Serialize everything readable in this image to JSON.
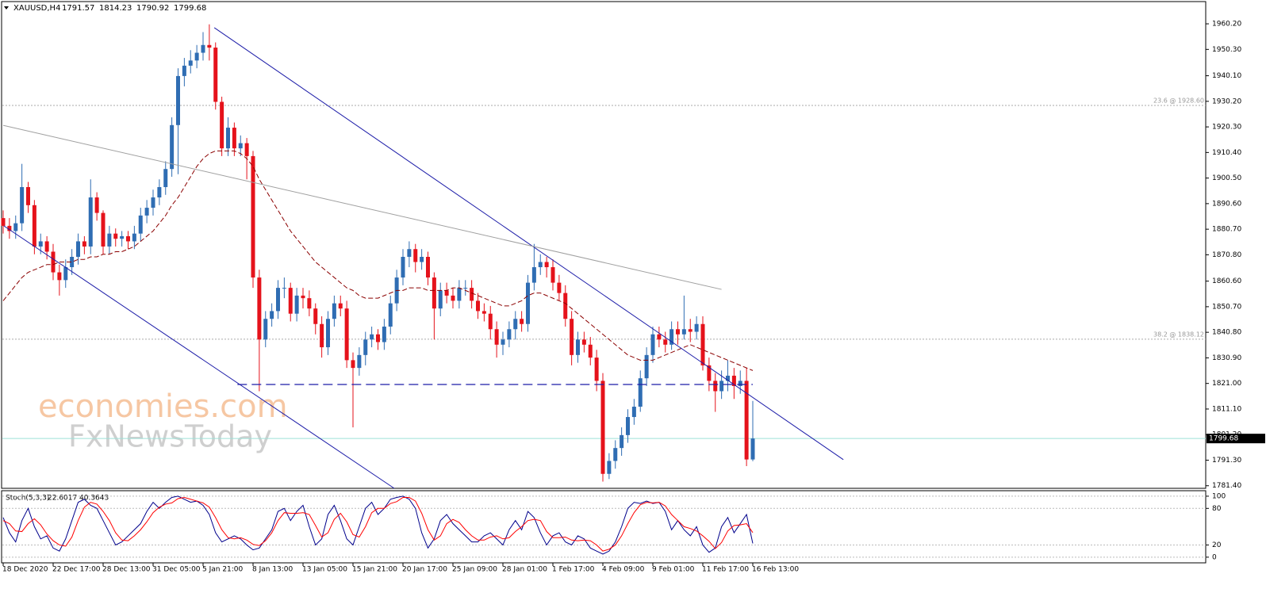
{
  "chart_data": [
    {
      "type": "candlestick",
      "symbol": "XAUUSD,H4",
      "categories": [
        "18 Dec 2020",
        null,
        null,
        null,
        null,
        null,
        null,
        null,
        "22 Dec 17:00",
        null,
        null,
        null,
        null,
        null,
        null,
        null,
        "28 Dec 13:00",
        null,
        null,
        null,
        null,
        null,
        null,
        null,
        "31 Dec 05:00",
        null,
        null,
        null,
        null,
        null,
        null,
        null,
        "5 Jan 21:00",
        null,
        null,
        null,
        null,
        null,
        null,
        null,
        "8 Jan 13:00",
        null,
        null,
        null,
        null,
        null,
        null,
        null,
        "13 Jan 05:00",
        null,
        null,
        null,
        null,
        null,
        null,
        null,
        "15 Jan 21:00",
        null,
        null,
        null,
        null,
        null,
        null,
        null,
        "20 Jan 17:00",
        null,
        null,
        null,
        null,
        null,
        null,
        null,
        "25 Jan 09:00",
        null,
        null,
        null,
        null,
        null,
        null,
        null,
        "28 Jan 01:00",
        null,
        null,
        null,
        null,
        null,
        null,
        null,
        "1 Feb 17:00",
        null,
        null,
        null,
        null,
        null,
        null,
        null,
        "4 Feb 09:00",
        null,
        null,
        null,
        null,
        null,
        null,
        null,
        "9 Feb 01:00",
        null,
        null,
        null,
        null,
        null,
        null,
        null,
        "11 Feb 17:00",
        null,
        null,
        null,
        null,
        null,
        null,
        null,
        "16 Feb 13:00"
      ],
      "open": [
        1885,
        1882,
        1880,
        1883,
        1897,
        1890,
        1874,
        1876,
        1872,
        1864,
        1861,
        1866,
        1870,
        1876,
        1874,
        1893,
        1887,
        1874,
        1879,
        1877,
        1878,
        1876,
        1879,
        1886,
        1889,
        1893,
        1897,
        1904,
        1921,
        1940,
        1944,
        1946,
        1949,
        1952,
        1951,
        1930,
        1912,
        1920,
        1912,
        1914,
        1909,
        1862,
        1838,
        1846,
        1849,
        1858,
        1858,
        1848,
        1855,
        1854,
        1850,
        1844,
        1835,
        1846,
        1852,
        1850,
        1830,
        1827,
        1832,
        1838,
        1840,
        1837,
        1843,
        1852,
        1862,
        1870,
        1873,
        1868,
        1870,
        1862,
        1850,
        1857,
        1855,
        1853,
        1858,
        1858,
        1853,
        1849,
        1848,
        1842,
        1836,
        1838,
        1842,
        1846,
        1844,
        1860,
        1866,
        1868,
        1866,
        1860,
        1856,
        1846,
        1832,
        1838,
        1836,
        1831,
        1822,
        1786,
        1791,
        1796,
        1801,
        1808,
        1812,
        1823,
        1832,
        1840,
        1838,
        1836,
        1842,
        1840,
        1842,
        1841,
        1844,
        1828,
        1822,
        1818,
        1822,
        1824,
        1820,
        1822,
        1791.57
      ],
      "high": [
        1888,
        1885,
        1886,
        1906,
        1899,
        1892,
        1879,
        1878,
        1875,
        1867,
        1869,
        1873,
        1879,
        1878,
        1900,
        1895,
        1888,
        1882,
        1881,
        1880,
        1880,
        1882,
        1889,
        1892,
        1896,
        1900,
        1907,
        1924,
        1943,
        1947,
        1950,
        1952,
        1957,
        1960,
        1953,
        1932,
        1924,
        1922,
        1917,
        1916,
        1911,
        1865,
        1849,
        1852,
        1861,
        1862,
        1860,
        1858,
        1858,
        1857,
        1852,
        1847,
        1849,
        1855,
        1855,
        1853,
        1833,
        1835,
        1841,
        1843,
        1842,
        1846,
        1855,
        1865,
        1873,
        1876,
        1875,
        1873,
        1872,
        1864,
        1860,
        1860,
        1858,
        1861,
        1861,
        1861,
        1856,
        1852,
        1851,
        1845,
        1841,
        1845,
        1849,
        1849,
        1863,
        1875,
        1871,
        1870,
        1869,
        1863,
        1859,
        1849,
        1841,
        1841,
        1839,
        1834,
        1825,
        1794,
        1799,
        1804,
        1811,
        1815,
        1826,
        1835,
        1843,
        1843,
        1841,
        1845,
        1845,
        1855,
        1846,
        1847,
        1847,
        1831,
        1825,
        1826,
        1830,
        1827,
        1826,
        1827,
        1814.23
      ],
      "low": [
        1879,
        1877,
        1877,
        1880,
        1887,
        1871,
        1871,
        1869,
        1861,
        1855,
        1858,
        1863,
        1867,
        1871,
        1871,
        1884,
        1871,
        1871,
        1874,
        1874,
        1873,
        1873,
        1876,
        1883,
        1886,
        1890,
        1894,
        1901,
        1902,
        1936,
        1941,
        1943,
        1946,
        1946,
        1927,
        1909,
        1909,
        1909,
        1909,
        1900,
        1858,
        1818,
        1835,
        1843,
        1846,
        1854,
        1845,
        1845,
        1850,
        1847,
        1840,
        1831,
        1832,
        1843,
        1847,
        1827,
        1804,
        1824,
        1828,
        1835,
        1834,
        1834,
        1840,
        1849,
        1859,
        1866,
        1864,
        1865,
        1859,
        1838,
        1847,
        1852,
        1850,
        1850,
        1855,
        1850,
        1846,
        1845,
        1838,
        1831,
        1832,
        1835,
        1838,
        1841,
        1841,
        1857,
        1863,
        1862,
        1857,
        1853,
        1843,
        1828,
        1829,
        1833,
        1828,
        1818,
        1783,
        1784,
        1788,
        1793,
        1798,
        1805,
        1810,
        1820,
        1829,
        1835,
        1833,
        1834,
        1836,
        1838,
        1837,
        1838,
        1826,
        1818,
        1810,
        1815,
        1818,
        1815,
        1817,
        1789,
        1790.92
      ],
      "close": [
        1882,
        1880,
        1883,
        1897,
        1890,
        1874,
        1876,
        1872,
        1864,
        1861,
        1866,
        1870,
        1876,
        1874,
        1893,
        1887,
        1874,
        1879,
        1877,
        1878,
        1876,
        1879,
        1886,
        1889,
        1893,
        1897,
        1904,
        1921,
        1940,
        1944,
        1946,
        1949,
        1952,
        1951,
        1930,
        1912,
        1920,
        1912,
        1914,
        1909,
        1862,
        1838,
        1846,
        1849,
        1858,
        1858,
        1848,
        1855,
        1854,
        1850,
        1844,
        1835,
        1846,
        1852,
        1850,
        1830,
        1827,
        1832,
        1838,
        1840,
        1837,
        1843,
        1852,
        1862,
        1870,
        1873,
        1868,
        1870,
        1862,
        1850,
        1857,
        1855,
        1853,
        1858,
        1858,
        1853,
        1849,
        1848,
        1842,
        1836,
        1838,
        1842,
        1846,
        1844,
        1860,
        1866,
        1868,
        1866,
        1860,
        1856,
        1846,
        1832,
        1838,
        1836,
        1831,
        1822,
        1786,
        1791,
        1796,
        1801,
        1808,
        1812,
        1823,
        1832,
        1840,
        1838,
        1836,
        1842,
        1840,
        1842,
        1841,
        1844,
        1828,
        1822,
        1818,
        1822,
        1824,
        1820,
        1822,
        1791.57,
        1799.68
      ],
      "ma": [
        1853,
        1856,
        1859,
        1862,
        1864,
        1865,
        1866,
        1867,
        1867,
        1868,
        1868,
        1868,
        1869,
        1869,
        1870,
        1870,
        1871,
        1871,
        1872,
        1872,
        1873,
        1874,
        1876,
        1878,
        1880,
        1883,
        1886,
        1890,
        1893,
        1897,
        1901,
        1905,
        1908,
        1910,
        1911,
        1911,
        1911,
        1911,
        1910,
        1908,
        1905,
        1900,
        1896,
        1892,
        1888,
        1884,
        1880,
        1877,
        1874,
        1871,
        1868,
        1866,
        1864,
        1862,
        1860,
        1858,
        1857,
        1855,
        1854,
        1854,
        1854,
        1855,
        1856,
        1857,
        1857,
        1858,
        1858,
        1858,
        1857,
        1857,
        1857,
        1857,
        1858,
        1858,
        1857,
        1856,
        1855,
        1854,
        1853,
        1852,
        1851,
        1851,
        1852,
        1853,
        1855,
        1856,
        1856,
        1855,
        1854,
        1853,
        1852,
        1850,
        1848,
        1846,
        1844,
        1842,
        1840,
        1838,
        1836,
        1834,
        1832,
        1831,
        1830,
        1830,
        1830,
        1831,
        1832,
        1833,
        1834,
        1835,
        1836,
        1835,
        1834,
        1833,
        1832,
        1831,
        1830,
        1829,
        1828,
        1827,
        1826
      ],
      "up_color": "#2f6db3",
      "down_color": "#e5121b",
      "ma_color": "#8b0000",
      "price_line_color": "#9ee0d8",
      "ylim": [
        1780.4,
        1968.5
      ],
      "yticks": [
        {
          "value": 1960.2,
          "label": "1960.20"
        },
        {
          "value": 1950.3,
          "label": "1950.30"
        },
        {
          "value": 1940.1,
          "label": "1940.10"
        },
        {
          "value": 1930.2,
          "label": "1930.20"
        },
        {
          "value": 1920.3,
          "label": "1920.30"
        },
        {
          "value": 1910.4,
          "label": "1910.40"
        },
        {
          "value": 1900.5,
          "label": "1900.50"
        },
        {
          "value": 1890.6,
          "label": "1890.60"
        },
        {
          "value": 1880.7,
          "label": "1880.70"
        },
        {
          "value": 1870.8,
          "label": "1870.80"
        },
        {
          "value": 1860.6,
          "label": "1860.60"
        },
        {
          "value": 1850.7,
          "label": "1850.70"
        },
        {
          "value": 1840.8,
          "label": "1840.80"
        },
        {
          "value": 1830.9,
          "label": "1830.90"
        },
        {
          "value": 1821,
          "label": "1821.00"
        },
        {
          "value": 1811.1,
          "label": "1811.10"
        },
        {
          "value": 1801.2,
          "label": "1801.20"
        },
        {
          "value": 1791.3,
          "label": "1791.30"
        },
        {
          "value": 1781.4,
          "label": "1781.40"
        }
      ],
      "levels": [
        {
          "value": 1928.6,
          "label": "23.6 @ 1928.60"
        },
        {
          "value": 1838.12,
          "label": "38.2 @ 1838.12"
        }
      ],
      "trendlines": [
        {
          "x": [
            33.8,
            134.5
          ],
          "y": [
            1958.7,
            1791.5
          ],
          "color": "#1c1ca8",
          "dashed": false
        },
        {
          "x": [
            0.1,
            62.6
          ],
          "y": [
            1882,
            1780.4
          ],
          "color": "#1c1ca8",
          "dashed": false
        },
        {
          "x": [
            0,
            115
          ],
          "y": [
            1920.9,
            1857.4
          ],
          "color": "#a0a0a0",
          "dashed": false
        },
        {
          "x": [
            37.5,
            120
          ],
          "y": [
            1820.6,
            1820.6
          ],
          "color": "#1c1ca8",
          "dashed": true
        }
      ],
      "watermark": [
        "economies.com",
        "FxNewsToday"
      ]
    },
    {
      "type": "line",
      "title": "Stoch(5,3,3)",
      "series": [
        {
          "color": "#00008b",
          "values": [
            65,
            40,
            25,
            60,
            80,
            50,
            30,
            35,
            15,
            10,
            30,
            60,
            90,
            95,
            85,
            80,
            60,
            40,
            20,
            25,
            35,
            45,
            55,
            75,
            90,
            80,
            90,
            98,
            100,
            95,
            90,
            92,
            85,
            70,
            40,
            25,
            30,
            35,
            30,
            20,
            12,
            15,
            30,
            45,
            75,
            80,
            60,
            75,
            85,
            50,
            20,
            30,
            70,
            85,
            60,
            30,
            20,
            50,
            80,
            90,
            70,
            80,
            95,
            98,
            100,
            95,
            80,
            40,
            15,
            30,
            60,
            70,
            55,
            45,
            35,
            25,
            25,
            35,
            40,
            30,
            20,
            45,
            60,
            45,
            75,
            65,
            40,
            20,
            35,
            40,
            25,
            20,
            35,
            30,
            15,
            10,
            5,
            10,
            25,
            50,
            80,
            90,
            88,
            92,
            88,
            90,
            75,
            45,
            60,
            45,
            35,
            50,
            20,
            8,
            15,
            50,
            65,
            40,
            55,
            70,
            22.6017
          ]
        },
        {
          "color": "#ff0000",
          "values": [
            60,
            55,
            43,
            42,
            55,
            63,
            53,
            38,
            27,
            20,
            18,
            33,
            60,
            82,
            90,
            87,
            75,
            60,
            40,
            28,
            27,
            35,
            45,
            58,
            73,
            82,
            87,
            89,
            96,
            98,
            95,
            92,
            89,
            82,
            65,
            45,
            32,
            30,
            32,
            28,
            21,
            19,
            27,
            40,
            60,
            73,
            72,
            72,
            73,
            70,
            52,
            33,
            40,
            62,
            72,
            58,
            37,
            33,
            50,
            73,
            80,
            80,
            88,
            91,
            98,
            98,
            92,
            72,
            45,
            28,
            35,
            55,
            62,
            57,
            45,
            35,
            28,
            28,
            33,
            35,
            30,
            32,
            42,
            50,
            60,
            62,
            60,
            42,
            32,
            32,
            33,
            28,
            27,
            28,
            27,
            20,
            10,
            13,
            20,
            35,
            55,
            73,
            86,
            90,
            89,
            90,
            84,
            70,
            60,
            50,
            47,
            43,
            35,
            26,
            14,
            24,
            43,
            52,
            53,
            55,
            40.3643
          ]
        }
      ],
      "ylim": [
        -9.3,
        107.7
      ],
      "yticks": [
        0,
        20,
        80,
        100
      ],
      "grid": true
    }
  ]
}
